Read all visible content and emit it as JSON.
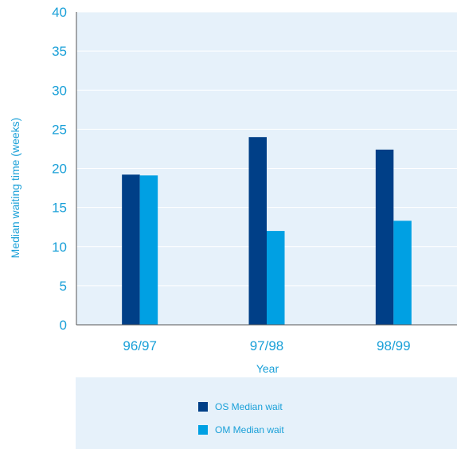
{
  "chart_data": {
    "type": "bar",
    "title": "",
    "xlabel": "Year",
    "ylabel": "Median waiting time (weeks)",
    "categories": [
      "96/97",
      "97/98",
      "98/99"
    ],
    "series": [
      {
        "name": "OS Median wait",
        "color": "#003f87",
        "values": [
          19.2,
          24.0,
          22.4
        ]
      },
      {
        "name": "OM Median wait",
        "color": "#00a0e3",
        "values": [
          19.1,
          12.0,
          13.3
        ]
      }
    ],
    "ylim": [
      0,
      40
    ],
    "yticks": [
      "0",
      "5",
      "10",
      "15",
      "20",
      "25",
      "30",
      "35",
      "40"
    ],
    "grid": true,
    "legend": "bottom",
    "colors": {
      "plot_bg": "#e6f1fa",
      "grid": "#ffffff",
      "text": "#1aa0d8",
      "axis": "#555555"
    }
  }
}
